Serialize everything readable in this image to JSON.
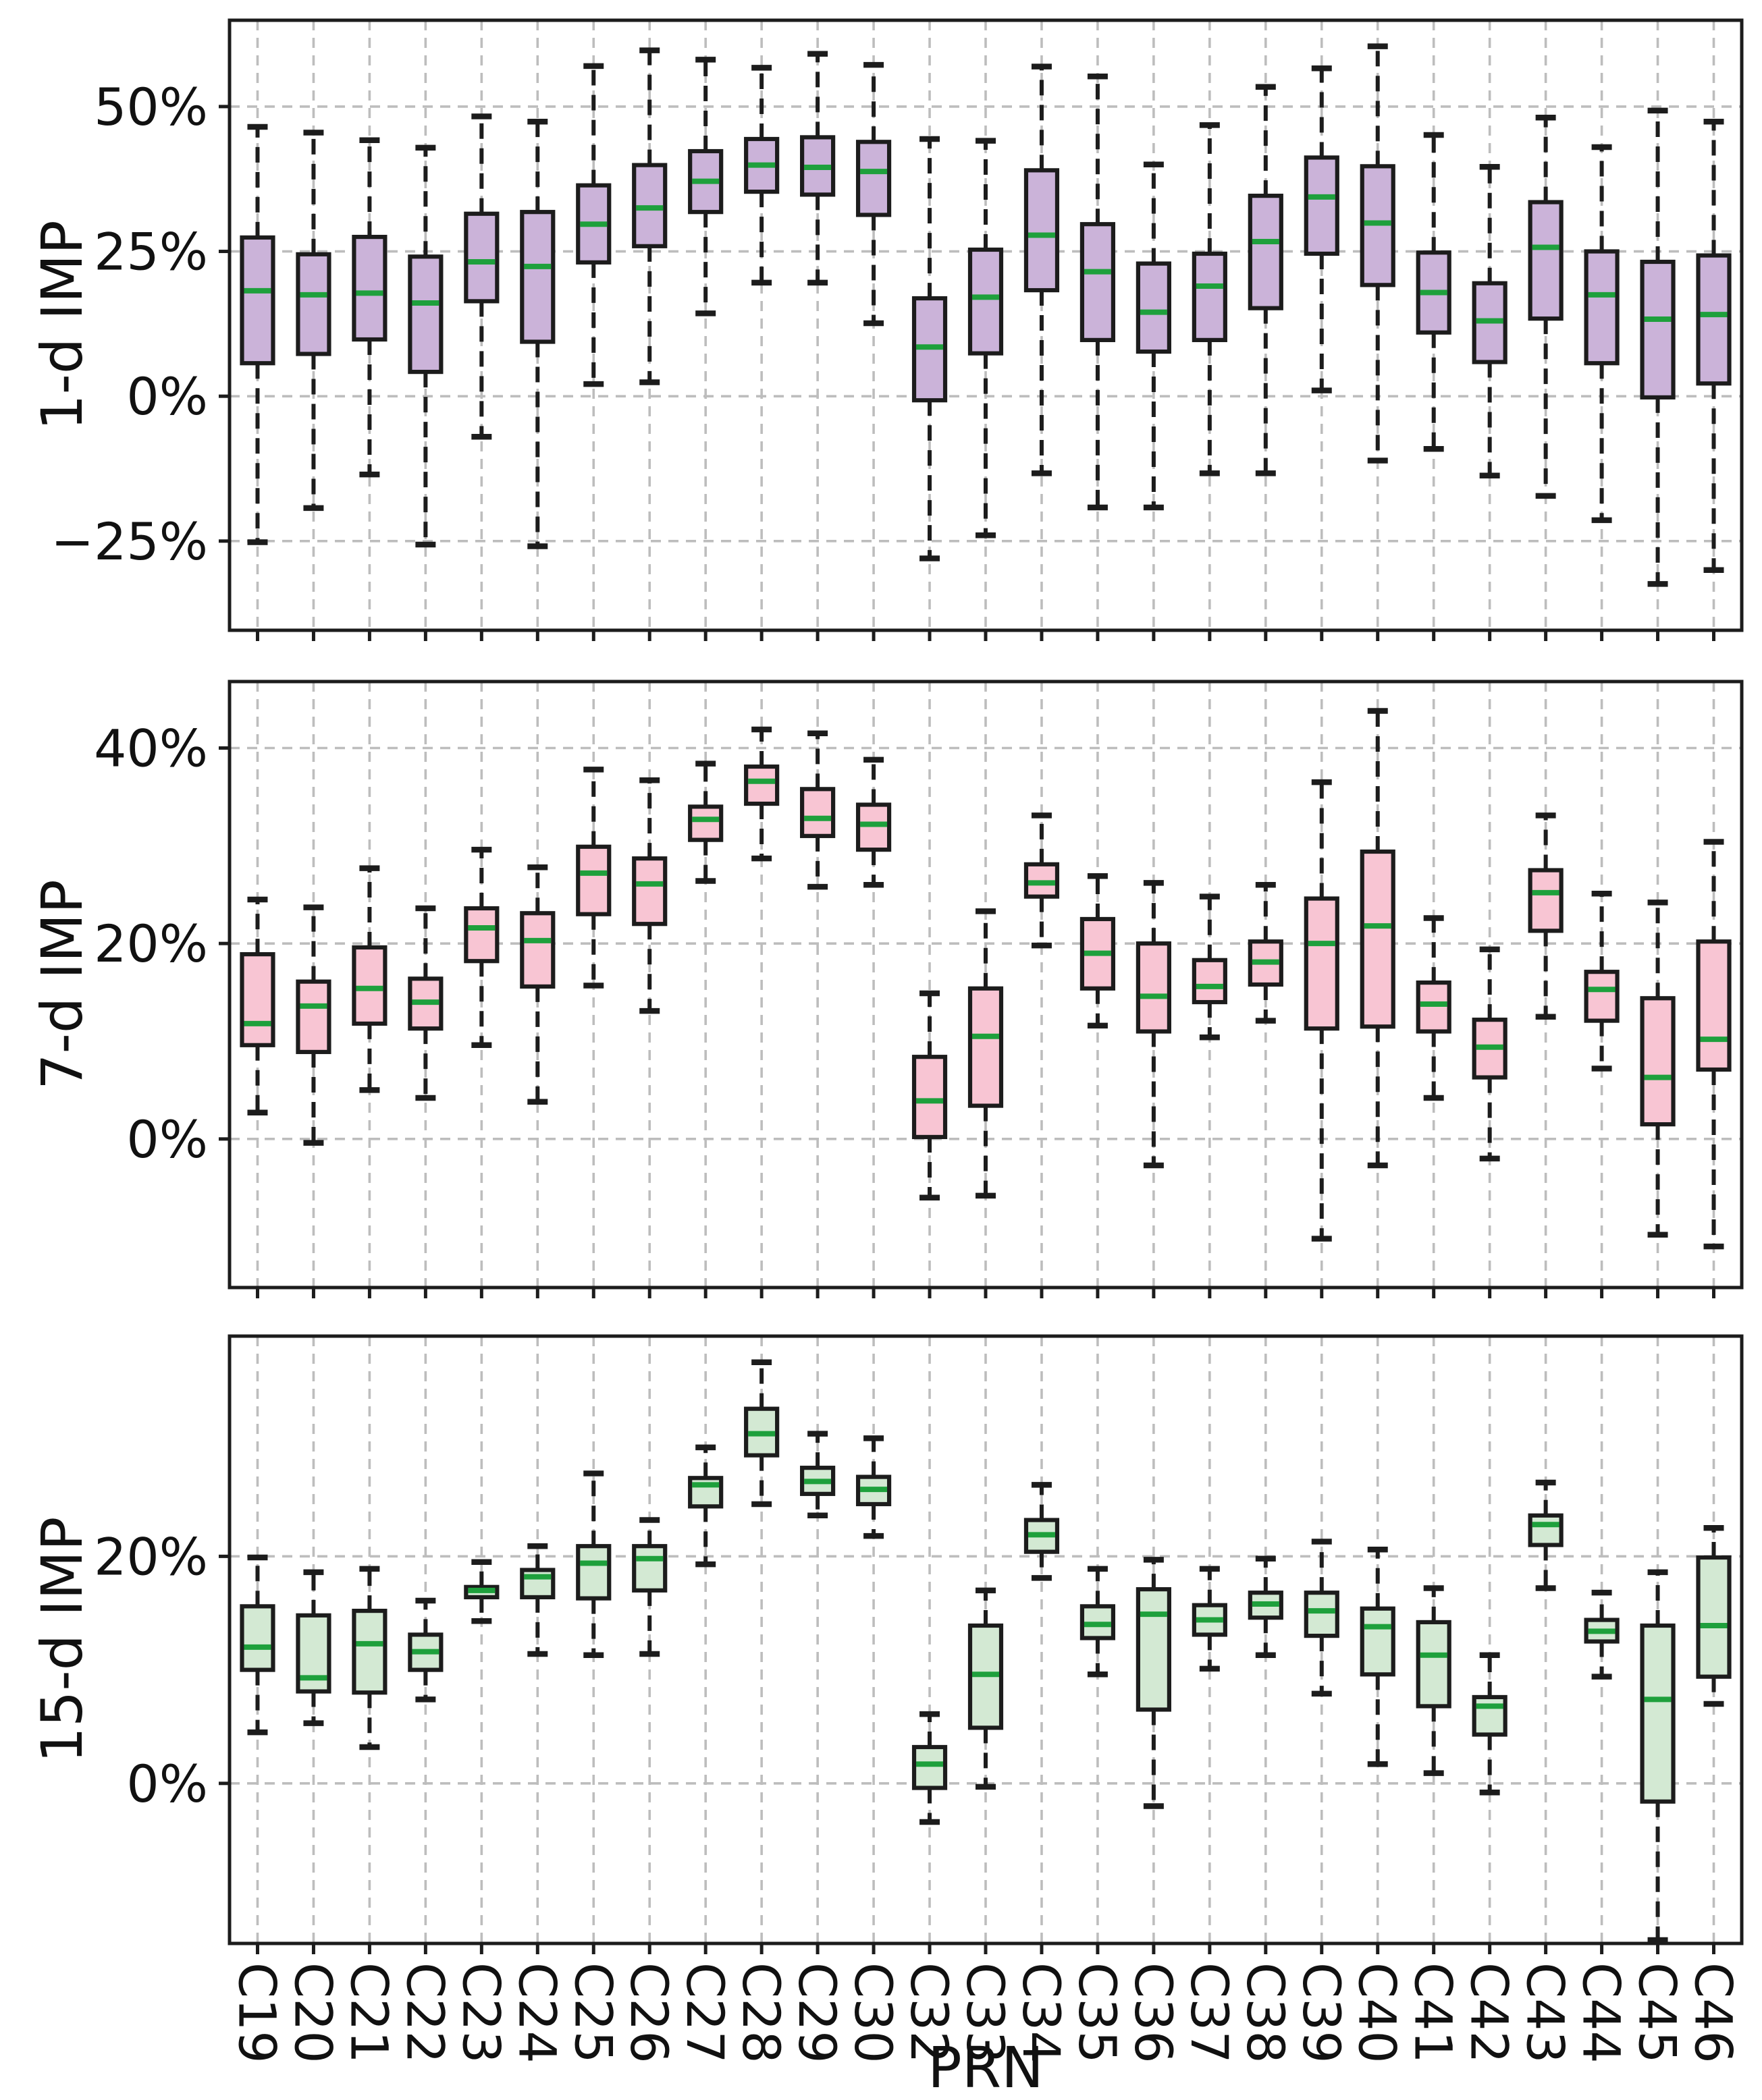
{
  "chart_data": {
    "type": "boxplot",
    "title": "",
    "xlabel": "PRN",
    "grid": true,
    "categories": [
      "C19",
      "C20",
      "C21",
      "C22",
      "C23",
      "C24",
      "C25",
      "C26",
      "C27",
      "C28",
      "C29",
      "C30",
      "C32",
      "C33",
      "C34",
      "C35",
      "C36",
      "C37",
      "C38",
      "C39",
      "C40",
      "C41",
      "C42",
      "C43",
      "C44",
      "C45",
      "C46"
    ],
    "box_value_order": [
      "whisker_low",
      "q1",
      "median",
      "q3",
      "whisker_high"
    ],
    "colors": {
      "edge": "#1c1c1c",
      "median": "#1ea03c",
      "grid": "#bdbdbd",
      "text": "#111111",
      "background": "#ffffff"
    },
    "panels": [
      {
        "ylabel": "1-d IMP",
        "fill_color": "#cbb3d9",
        "ylim": [
          -40.4,
          64.9
        ],
        "yticks": [
          {
            "value": 50,
            "label": "50%"
          },
          {
            "value": 25,
            "label": "25%"
          },
          {
            "value": 0,
            "label": "0%"
          },
          {
            "value": -25,
            "label": "−25%"
          }
        ],
        "series": [
          [
            -25.2,
            5.7,
            18.2,
            27.4,
            46.5
          ],
          [
            -19.3,
            7.3,
            17.5,
            24.5,
            45.5
          ],
          [
            -13.5,
            9.8,
            17.8,
            27.5,
            44.2
          ],
          [
            -25.6,
            4.2,
            16.1,
            24.1,
            42.9
          ],
          [
            -7.0,
            16.4,
            23.2,
            31.5,
            48.3
          ],
          [
            -25.9,
            9.4,
            22.4,
            31.8,
            47.4
          ],
          [
            2.1,
            23.1,
            29.7,
            36.4,
            57.0
          ],
          [
            2.4,
            25.9,
            32.5,
            39.9,
            59.7
          ],
          [
            14.3,
            31.8,
            37.1,
            42.3,
            58.1
          ],
          [
            19.6,
            35.3,
            39.9,
            44.4,
            56.7
          ],
          [
            19.6,
            34.8,
            39.5,
            44.7,
            59.1
          ],
          [
            12.6,
            31.3,
            38.8,
            43.9,
            57.2
          ],
          [
            -28.0,
            -0.7,
            8.5,
            16.9,
            44.4
          ],
          [
            -24.0,
            7.4,
            17.1,
            25.3,
            44.1
          ],
          [
            -13.3,
            18.3,
            27.8,
            39.0,
            56.9
          ],
          [
            -19.2,
            9.7,
            21.5,
            29.7,
            55.2
          ],
          [
            -19.2,
            7.7,
            14.5,
            22.9,
            40.0
          ],
          [
            -13.3,
            9.7,
            19.0,
            24.6,
            46.8
          ],
          [
            -13.3,
            15.2,
            26.7,
            34.6,
            53.4
          ],
          [
            1.0,
            24.6,
            34.4,
            41.2,
            56.6
          ],
          [
            -11.1,
            19.2,
            29.9,
            39.7,
            60.4
          ],
          [
            -9.1,
            11.0,
            17.9,
            24.8,
            45.1
          ],
          [
            -13.7,
            5.9,
            13.0,
            19.5,
            39.6
          ],
          [
            -17.2,
            13.4,
            25.7,
            33.5,
            48.1
          ],
          [
            -21.4,
            5.7,
            17.5,
            25.0,
            43.0
          ],
          [
            -32.4,
            -0.2,
            13.3,
            23.2,
            49.3
          ],
          [
            -30.0,
            2.2,
            14.1,
            24.3,
            47.4
          ]
        ]
      },
      {
        "ylabel": "7-d IMP",
        "fill_color": "#f8c5d3",
        "ylim": [
          -15.2,
          46.8
        ],
        "yticks": [
          {
            "value": 40,
            "label": "40%"
          },
          {
            "value": 20,
            "label": "20%"
          },
          {
            "value": 0,
            "label": "0%"
          }
        ],
        "series": [
          [
            2.7,
            9.6,
            11.8,
            18.9,
            24.5
          ],
          [
            -0.4,
            8.9,
            13.6,
            16.1,
            23.7
          ],
          [
            5.0,
            11.8,
            15.4,
            19.6,
            27.7
          ],
          [
            4.2,
            11.3,
            14.0,
            16.4,
            23.6
          ],
          [
            9.6,
            18.2,
            21.6,
            23.6,
            29.6
          ],
          [
            3.8,
            15.6,
            20.3,
            23.1,
            27.8
          ],
          [
            15.7,
            23.0,
            27.2,
            29.9,
            37.8
          ],
          [
            13.1,
            22.0,
            26.1,
            28.7,
            36.7
          ],
          [
            26.4,
            30.6,
            32.7,
            34.0,
            38.4
          ],
          [
            28.7,
            34.3,
            36.6,
            38.1,
            41.9
          ],
          [
            25.8,
            31.0,
            32.8,
            35.8,
            41.5
          ],
          [
            26.0,
            29.6,
            32.2,
            34.2,
            38.8
          ],
          [
            -6.0,
            0.2,
            3.9,
            8.4,
            14.9
          ],
          [
            -5.8,
            3.4,
            10.5,
            15.4,
            23.3
          ],
          [
            19.8,
            24.8,
            26.2,
            28.1,
            33.1
          ],
          [
            11.6,
            15.4,
            19.0,
            22.5,
            26.9
          ],
          [
            -2.7,
            11.0,
            14.6,
            20.0,
            26.2
          ],
          [
            10.4,
            14.0,
            15.6,
            18.3,
            24.8
          ],
          [
            12.1,
            15.8,
            18.1,
            20.2,
            26.0
          ],
          [
            -10.2,
            11.3,
            20.0,
            24.6,
            36.5
          ],
          [
            -2.7,
            11.5,
            21.8,
            29.4,
            43.8
          ],
          [
            4.2,
            11.0,
            13.8,
            16.0,
            22.6
          ],
          [
            -2.0,
            6.3,
            9.4,
            12.2,
            19.4
          ],
          [
            12.5,
            21.3,
            25.2,
            27.5,
            33.1
          ],
          [
            7.2,
            12.1,
            15.3,
            17.1,
            25.1
          ],
          [
            -9.8,
            1.5,
            6.3,
            14.4,
            24.2
          ],
          [
            -11.0,
            7.1,
            10.2,
            20.2,
            30.4
          ]
        ]
      },
      {
        "ylabel": "15-d IMP",
        "fill_color": "#d3e9d3",
        "ylim": [
          -14.1,
          39.4
        ],
        "yticks": [
          {
            "value": 20,
            "label": "20%"
          },
          {
            "value": 0,
            "label": "0%"
          }
        ],
        "series": [
          [
            4.5,
            10.0,
            12.0,
            15.6,
            19.9
          ],
          [
            5.3,
            8.1,
            9.3,
            14.8,
            18.6
          ],
          [
            3.2,
            8.0,
            12.3,
            15.2,
            18.9
          ],
          [
            7.4,
            10.0,
            11.6,
            13.1,
            16.1
          ],
          [
            14.3,
            16.4,
            17.0,
            17.3,
            19.5
          ],
          [
            11.4,
            16.4,
            18.2,
            18.8,
            20.9
          ],
          [
            11.3,
            16.3,
            19.4,
            20.9,
            27.3
          ],
          [
            11.4,
            17.0,
            19.8,
            20.9,
            23.2
          ],
          [
            19.3,
            24.4,
            26.3,
            26.9,
            29.6
          ],
          [
            24.6,
            28.9,
            30.8,
            33.0,
            37.1
          ],
          [
            23.6,
            25.5,
            26.6,
            27.8,
            30.8
          ],
          [
            21.8,
            24.6,
            25.9,
            27.0,
            30.4
          ],
          [
            -3.4,
            -0.4,
            1.7,
            3.2,
            6.1
          ],
          [
            -0.3,
            4.9,
            9.6,
            13.9,
            17.0
          ],
          [
            18.1,
            20.4,
            21.9,
            23.2,
            26.3
          ],
          [
            9.6,
            12.8,
            14.0,
            15.6,
            18.9
          ],
          [
            -2.0,
            6.5,
            14.9,
            17.1,
            19.7
          ],
          [
            10.1,
            13.1,
            14.4,
            15.7,
            18.9
          ],
          [
            11.3,
            14.6,
            15.8,
            16.8,
            19.8
          ],
          [
            7.9,
            13.0,
            15.2,
            16.8,
            21.3
          ],
          [
            1.7,
            9.6,
            13.8,
            15.4,
            20.6
          ],
          [
            0.9,
            6.8,
            11.3,
            14.2,
            17.2
          ],
          [
            -0.8,
            4.3,
            6.8,
            7.6,
            11.3
          ],
          [
            17.2,
            21.0,
            22.8,
            23.6,
            26.5
          ],
          [
            9.4,
            12.5,
            13.4,
            14.4,
            16.8
          ],
          [
            -13.8,
            -1.6,
            7.4,
            13.9,
            18.6
          ],
          [
            7.0,
            9.4,
            13.9,
            19.9,
            22.5
          ]
        ]
      }
    ]
  }
}
